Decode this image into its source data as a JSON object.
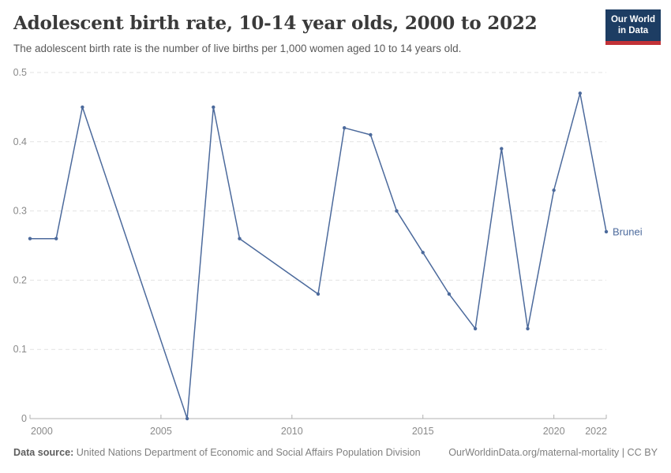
{
  "header": {
    "title": "Adolescent birth rate, 10-14 year olds, 2000 to 2022",
    "subtitle": "The adolescent birth rate is the number of live births per 1,000 women aged 10 to 14 years old.",
    "logo": {
      "line1": "Our World",
      "line2": "in Data",
      "bg_color": "#1d3d63",
      "accent_color": "#c23237"
    }
  },
  "chart_data": {
    "type": "line",
    "title": "Adolescent birth rate, 10-14 year olds, 2000 to 2022",
    "subtitle": "The adolescent birth rate is the number of live births per 1,000 women aged 10 to 14 years old.",
    "xlim": [
      2000,
      2022
    ],
    "ylim": [
      0,
      0.5
    ],
    "x_ticks": [
      2000,
      2005,
      2010,
      2015,
      2020,
      2022
    ],
    "y_ticks": [
      0,
      0.1,
      0.2,
      0.3,
      0.4,
      0.5
    ],
    "y_tick_labels": [
      "0",
      "0.1",
      "0.2",
      "0.3",
      "0.4",
      "0.5"
    ],
    "grid": "horizontal dashed",
    "legend_position": "end-of-line label",
    "series": [
      {
        "name": "Brunei",
        "color": "#4c6a9c",
        "points": [
          [
            2000,
            0.26
          ],
          [
            2001,
            0.26
          ],
          [
            2002,
            0.45
          ],
          [
            2006,
            0
          ],
          [
            2007,
            0.45
          ],
          [
            2008,
            0.26
          ],
          [
            2011,
            0.18
          ],
          [
            2012,
            0.42
          ],
          [
            2013,
            0.41
          ],
          [
            2014,
            0.3
          ],
          [
            2015,
            0.24
          ],
          [
            2016,
            0.18
          ],
          [
            2017,
            0.13
          ],
          [
            2018,
            0.39
          ],
          [
            2019,
            0.13
          ],
          [
            2020,
            0.33
          ],
          [
            2021,
            0.47
          ],
          [
            2022,
            0.27
          ]
        ]
      }
    ],
    "colors": {
      "gridline": "#e2e2e2",
      "axis": "#b0b0b0",
      "axis_label": "#8a8a8a"
    }
  },
  "footer": {
    "source_label": "Data source:",
    "source_text": " United Nations Department of Economic and Social Affairs Population Division",
    "attribution": "OurWorldinData.org/maternal-mortality | CC BY"
  }
}
